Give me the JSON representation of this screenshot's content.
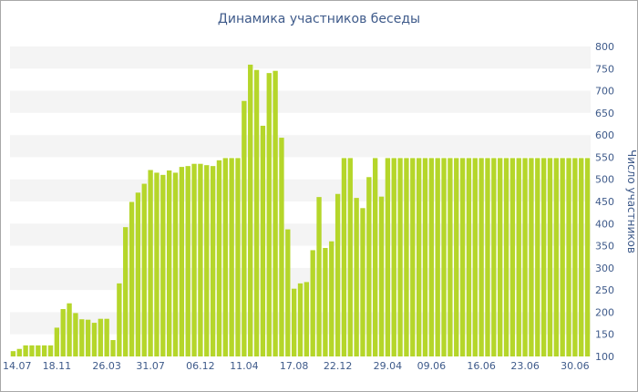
{
  "chart_data": {
    "type": "bar",
    "title": "Динамика участников беседы",
    "xlabel": "",
    "ylabel": "Число участников",
    "ylim": [
      100,
      800
    ],
    "yticks": [
      100,
      150,
      200,
      250,
      300,
      350,
      400,
      450,
      500,
      550,
      600,
      650,
      700,
      750,
      800
    ],
    "y_axis_position": "right",
    "grid": "horizontal-bands",
    "bar_color": "#b5d62a",
    "band_color": "#f4f4f4",
    "text_color": "#3e5a8a",
    "xtick_labels": [
      {
        "index": 0,
        "label": "14.07"
      },
      {
        "index": 7,
        "label": "18.11"
      },
      {
        "index": 15,
        "label": "26.03"
      },
      {
        "index": 22,
        "label": "31.07"
      },
      {
        "index": 30,
        "label": "06.12"
      },
      {
        "index": 37,
        "label": "11.04"
      },
      {
        "index": 45,
        "label": "17.08"
      },
      {
        "index": 52,
        "label": "22.12"
      },
      {
        "index": 60,
        "label": "29.04"
      },
      {
        "index": 67,
        "label": "09.06"
      },
      {
        "index": 75,
        "label": "16.06"
      },
      {
        "index": 82,
        "label": "23.06"
      },
      {
        "index": 90,
        "label": "30.06"
      }
    ],
    "values": [
      112,
      117,
      125,
      125,
      125,
      125,
      125,
      165,
      207,
      220,
      198,
      184,
      183,
      176,
      185,
      185,
      137,
      265,
      392,
      449,
      470,
      490,
      521,
      515,
      510,
      520,
      515,
      528,
      530,
      535,
      535,
      532,
      530,
      543,
      548,
      548,
      548,
      677,
      759,
      747,
      621,
      740,
      745,
      594,
      387,
      253,
      265,
      268,
      340,
      460,
      345,
      360,
      467,
      548,
      548,
      458,
      435,
      505,
      548,
      461,
      548,
      548,
      548,
      548,
      548,
      548,
      548,
      548,
      548,
      548,
      548,
      548,
      548,
      548,
      548,
      548,
      548,
      548,
      548,
      548,
      548,
      548,
      548,
      548,
      548,
      548,
      548,
      548,
      548,
      548,
      548,
      548,
      548
    ]
  }
}
